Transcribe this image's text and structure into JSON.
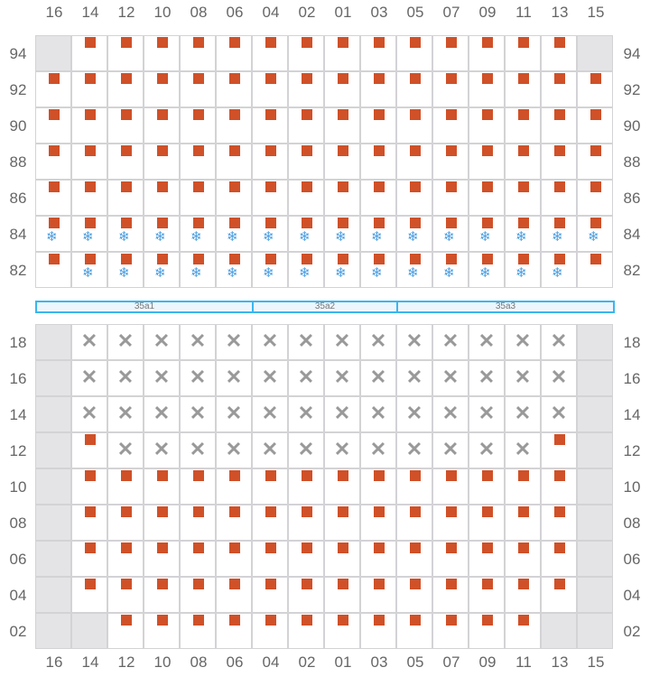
{
  "columns": [
    "16",
    "14",
    "12",
    "10",
    "08",
    "06",
    "04",
    "02",
    "01",
    "03",
    "05",
    "07",
    "09",
    "11",
    "13",
    "15"
  ],
  "colors": {
    "occupied": "#d05028",
    "frozen": "#4a9de0",
    "unavailable": "#e4e4e7",
    "section_border": "#3ab6ef"
  },
  "legend_codes": {
    "g": "unavailable",
    "o": "occupied",
    "of": "occupied-frozen",
    "x": "blocked"
  },
  "top_block": {
    "rows": [
      {
        "label": "94",
        "cells": [
          "g",
          "o",
          "o",
          "o",
          "o",
          "o",
          "o",
          "o",
          "o",
          "o",
          "o",
          "o",
          "o",
          "o",
          "o",
          "g"
        ]
      },
      {
        "label": "92",
        "cells": [
          "o",
          "o",
          "o",
          "o",
          "o",
          "o",
          "o",
          "o",
          "o",
          "o",
          "o",
          "o",
          "o",
          "o",
          "o",
          "o"
        ]
      },
      {
        "label": "90",
        "cells": [
          "o",
          "o",
          "o",
          "o",
          "o",
          "o",
          "o",
          "o",
          "o",
          "o",
          "o",
          "o",
          "o",
          "o",
          "o",
          "o"
        ]
      },
      {
        "label": "88",
        "cells": [
          "o",
          "o",
          "o",
          "o",
          "o",
          "o",
          "o",
          "o",
          "o",
          "o",
          "o",
          "o",
          "o",
          "o",
          "o",
          "o"
        ]
      },
      {
        "label": "86",
        "cells": [
          "o",
          "o",
          "o",
          "o",
          "o",
          "o",
          "o",
          "o",
          "o",
          "o",
          "o",
          "o",
          "o",
          "o",
          "o",
          "o"
        ]
      },
      {
        "label": "84",
        "cells": [
          "of",
          "of",
          "of",
          "of",
          "of",
          "of",
          "of",
          "of",
          "of",
          "of",
          "of",
          "of",
          "of",
          "of",
          "of",
          "of"
        ]
      },
      {
        "label": "82",
        "cells": [
          "o",
          "of",
          "of",
          "of",
          "of",
          "of",
          "of",
          "of",
          "of",
          "of",
          "of",
          "of",
          "of",
          "of",
          "of",
          "o"
        ]
      }
    ]
  },
  "sections": [
    {
      "label": "35a1",
      "span": 6
    },
    {
      "label": "35a2",
      "span": 4
    },
    {
      "label": "35a3",
      "span": 6
    }
  ],
  "bottom_block": {
    "rows": [
      {
        "label": "18",
        "cells": [
          "g",
          "x",
          "x",
          "x",
          "x",
          "x",
          "x",
          "x",
          "x",
          "x",
          "x",
          "x",
          "x",
          "x",
          "x",
          "g"
        ]
      },
      {
        "label": "16",
        "cells": [
          "g",
          "x",
          "x",
          "x",
          "x",
          "x",
          "x",
          "x",
          "x",
          "x",
          "x",
          "x",
          "x",
          "x",
          "x",
          "g"
        ]
      },
      {
        "label": "14",
        "cells": [
          "g",
          "x",
          "x",
          "x",
          "x",
          "x",
          "x",
          "x",
          "x",
          "x",
          "x",
          "x",
          "x",
          "x",
          "x",
          "g"
        ]
      },
      {
        "label": "12",
        "cells": [
          "g",
          "o",
          "x",
          "x",
          "x",
          "x",
          "x",
          "x",
          "x",
          "x",
          "x",
          "x",
          "x",
          "x",
          "o",
          "g"
        ]
      },
      {
        "label": "10",
        "cells": [
          "g",
          "o",
          "o",
          "o",
          "o",
          "o",
          "o",
          "o",
          "o",
          "o",
          "o",
          "o",
          "o",
          "o",
          "o",
          "g"
        ]
      },
      {
        "label": "08",
        "cells": [
          "g",
          "o",
          "o",
          "o",
          "o",
          "o",
          "o",
          "o",
          "o",
          "o",
          "o",
          "o",
          "o",
          "o",
          "o",
          "g"
        ]
      },
      {
        "label": "06",
        "cells": [
          "g",
          "o",
          "o",
          "o",
          "o",
          "o",
          "o",
          "o",
          "o",
          "o",
          "o",
          "o",
          "o",
          "o",
          "o",
          "g"
        ]
      },
      {
        "label": "04",
        "cells": [
          "g",
          "o",
          "o",
          "o",
          "o",
          "o",
          "o",
          "o",
          "o",
          "o",
          "o",
          "o",
          "o",
          "o",
          "o",
          "g"
        ]
      },
      {
        "label": "02",
        "cells": [
          "g",
          "g",
          "o",
          "o",
          "o",
          "o",
          "o",
          "o",
          "o",
          "o",
          "o",
          "o",
          "o",
          "o",
          "g",
          "g"
        ]
      }
    ]
  },
  "icons": {
    "frozen": "snowflake-icon",
    "blocked": "x-icon",
    "occupied": "square-marker-icon"
  }
}
